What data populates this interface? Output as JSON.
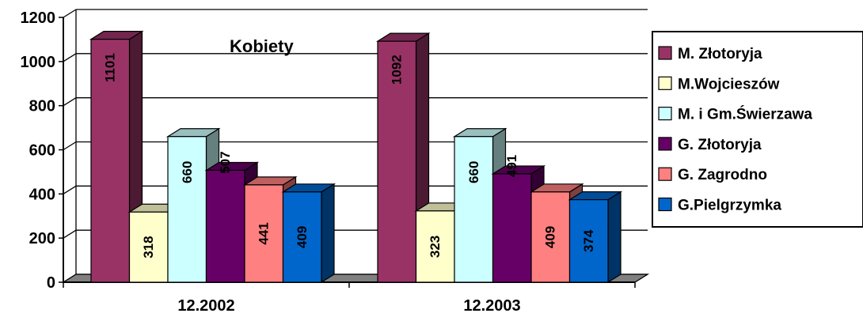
{
  "chart_data": {
    "type": "bar",
    "title": "Kobiety",
    "categories": [
      "12.2002",
      "12.2003"
    ],
    "series": [
      {
        "name": "M. Złotoryja",
        "values": [
          1101,
          1092
        ]
      },
      {
        "name": "M.Wojcieszów",
        "values": [
          318,
          323
        ]
      },
      {
        "name": "M. i Gm.Świerzawa",
        "values": [
          660,
          660
        ]
      },
      {
        "name": "G. Złotoryja",
        "values": [
          507,
          491
        ]
      },
      {
        "name": "G. Zagrodno",
        "values": [
          441,
          409
        ]
      },
      {
        "name": "G.Pielgrzymka",
        "values": [
          409,
          374
        ]
      }
    ],
    "ylim": [
      0,
      1200
    ],
    "yticks": [
      0,
      200,
      400,
      600,
      800,
      1000,
      1200
    ],
    "grid": true,
    "legend_position": "right",
    "data_label_orientation": "vertical",
    "colors": [
      "#993366",
      "#FFFFCC",
      "#CCFFFF",
      "#660066",
      "#FF8080",
      "#0066CC"
    ]
  }
}
